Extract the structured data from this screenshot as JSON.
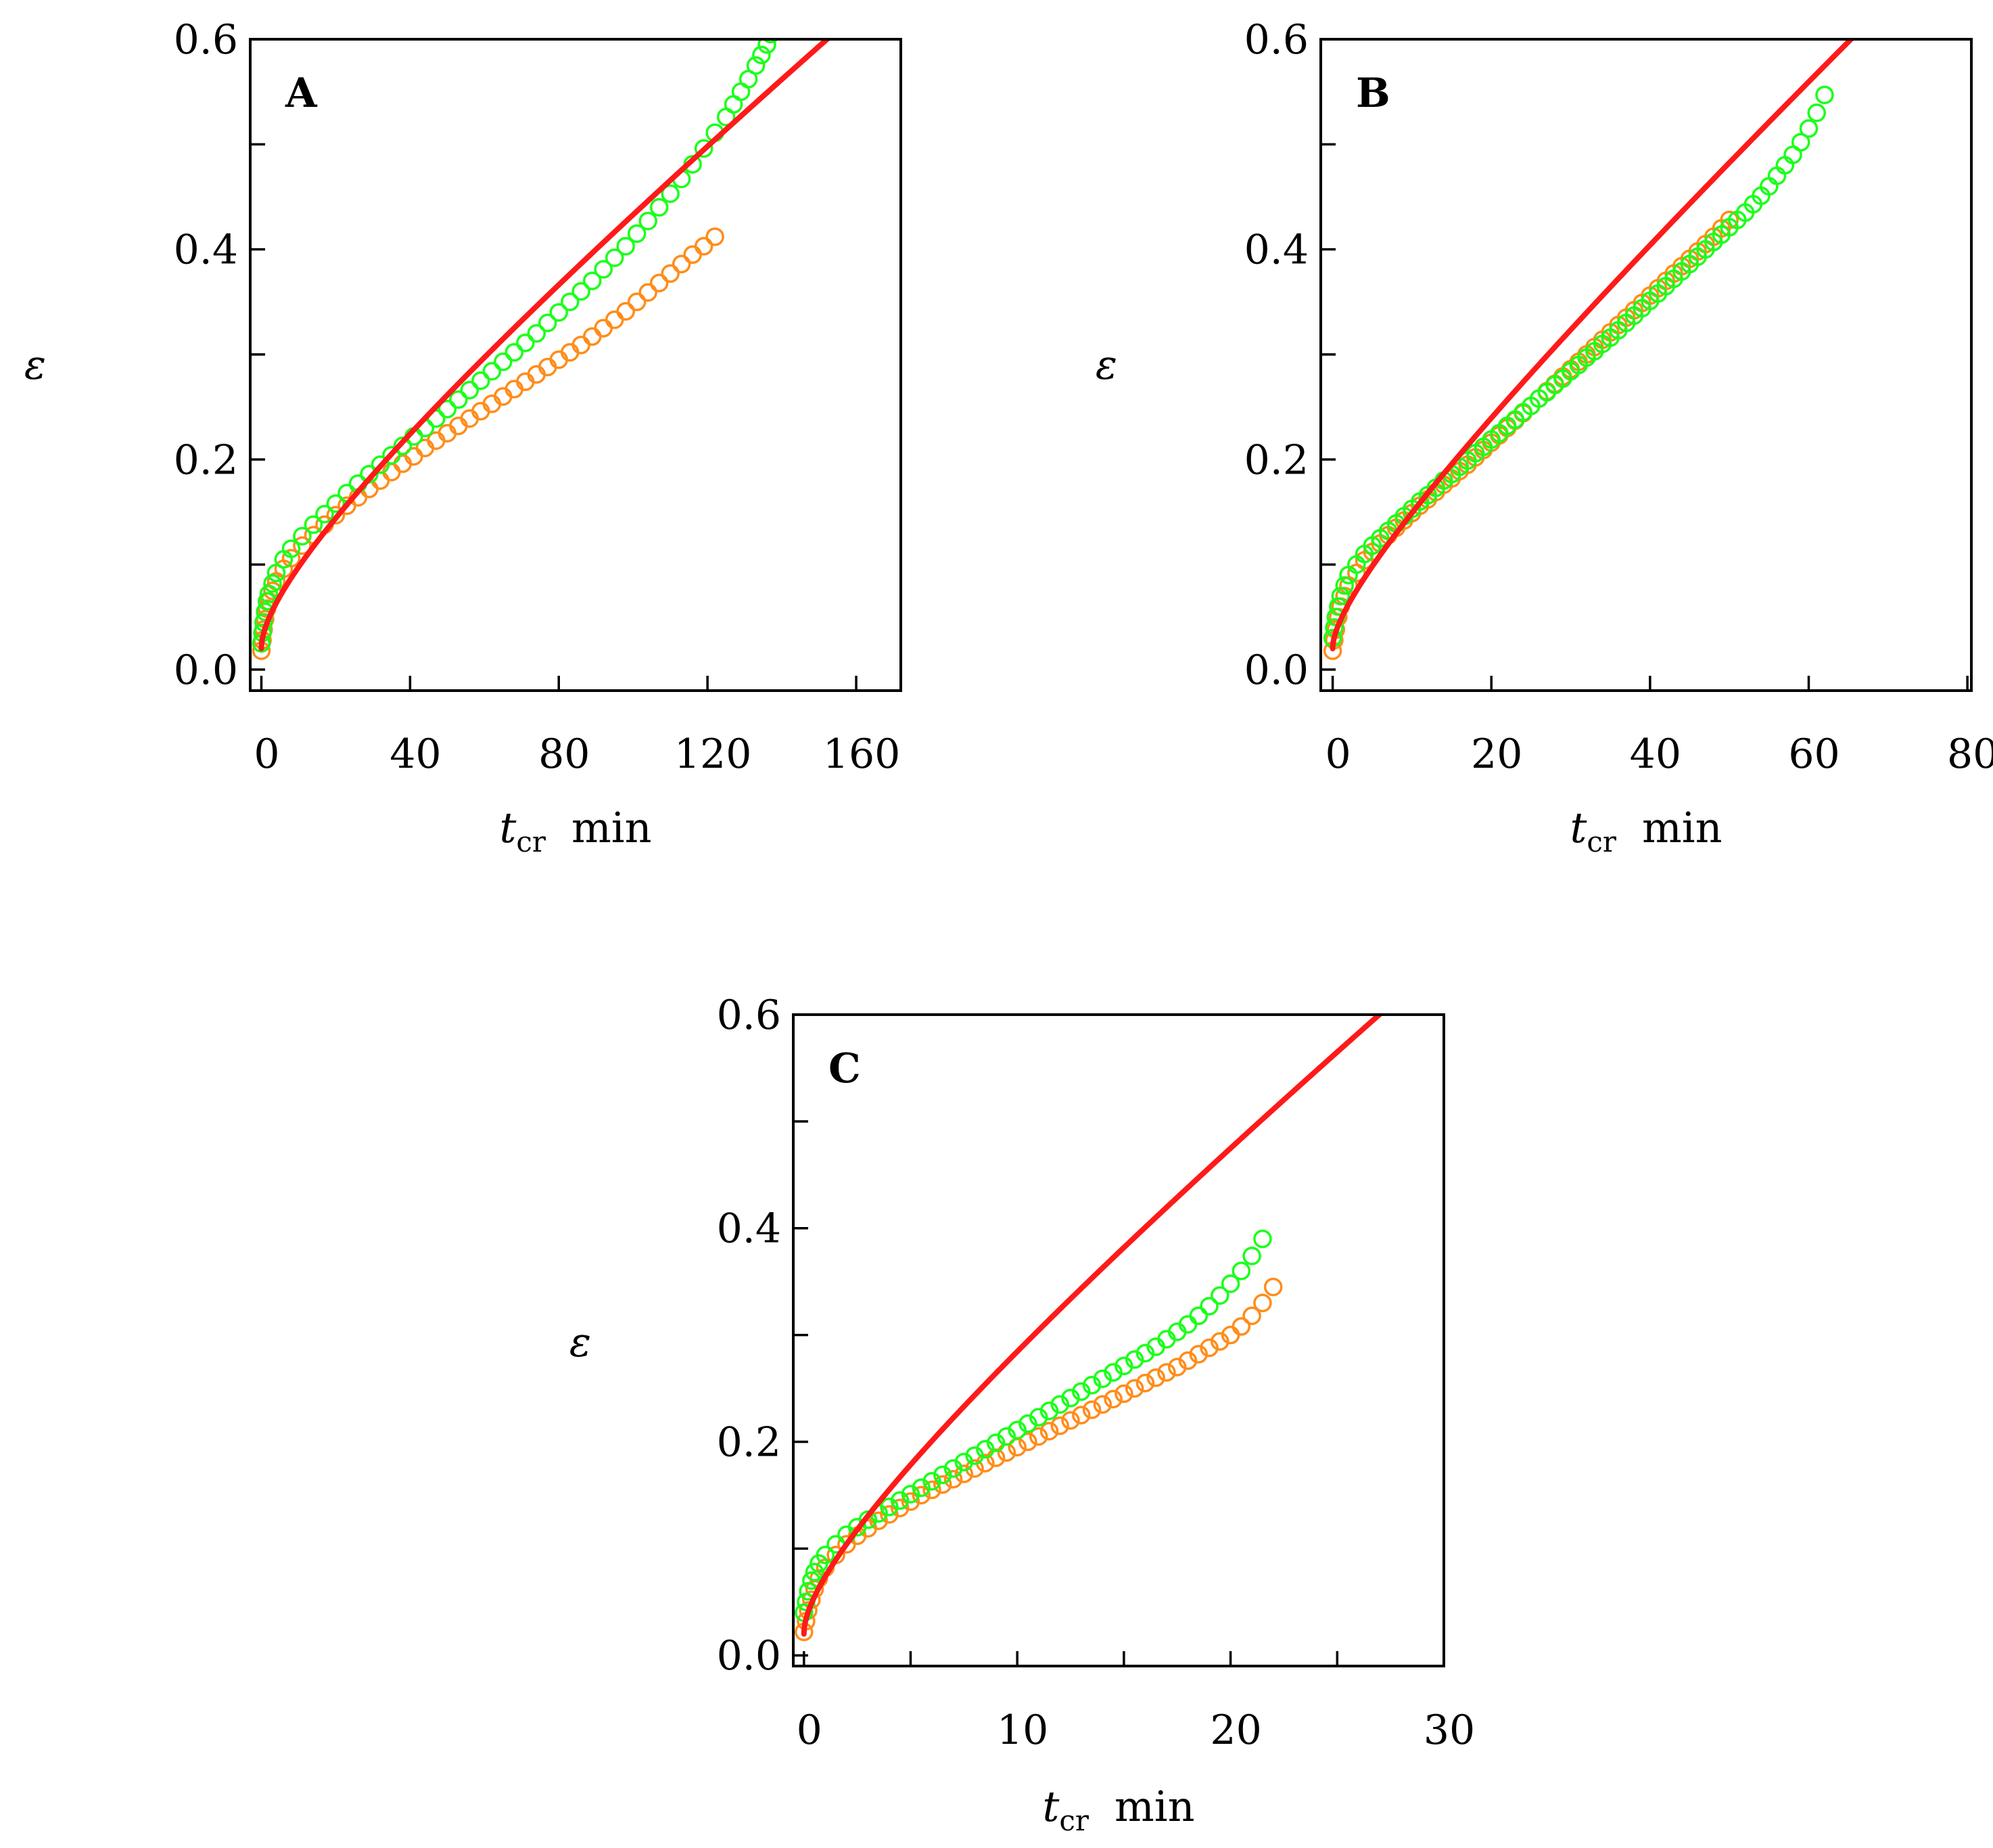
{
  "figure": {
    "colors": {
      "fit": "#ff1a1a",
      "green": "#1aff1a",
      "orange": "#ff8c1a",
      "axis": "#000000"
    }
  },
  "chart_data": [
    {
      "type": "scatter",
      "panel": "A",
      "xlabel": {
        "var": "t",
        "sub": "cr",
        "unit": "min"
      },
      "ylabel": "ε",
      "xlim": [
        -3,
        172
      ],
      "ylim": [
        -0.02,
        0.6
      ],
      "xticks": [
        0,
        40,
        80,
        120,
        160
      ],
      "xtick_labels": [
        "0",
        "40",
        "80",
        "120",
        "160"
      ],
      "yticks": [
        0.0,
        0.2,
        0.4,
        0.6
      ],
      "ytick_labels": [
        "0.0",
        "0.2",
        "0.4",
        "0.6"
      ],
      "yticks_minor": [
        0.1,
        0.3,
        0.5
      ],
      "grid": false,
      "series": [
        {
          "color": "#1aff1a",
          "marker": "circle-open",
          "x": [
            0,
            0.3,
            0.6,
            1,
            1.5,
            2,
            3,
            4,
            6,
            8,
            11,
            14,
            17,
            20,
            23,
            26,
            29,
            32,
            35,
            38,
            41,
            44,
            47,
            50,
            53,
            56,
            59,
            62,
            65,
            68,
            71,
            74,
            77,
            80,
            83,
            86,
            89,
            92,
            95,
            98,
            101,
            104,
            107,
            110,
            113,
            116,
            119,
            122,
            125,
            127,
            129,
            131,
            133,
            134.5,
            136,
            137,
            138,
            139,
            140
          ],
          "y": [
            0.025,
            0.035,
            0.045,
            0.055,
            0.065,
            0.072,
            0.082,
            0.092,
            0.105,
            0.115,
            0.127,
            0.138,
            0.148,
            0.158,
            0.168,
            0.177,
            0.186,
            0.195,
            0.204,
            0.213,
            0.222,
            0.23,
            0.239,
            0.248,
            0.257,
            0.266,
            0.275,
            0.284,
            0.293,
            0.302,
            0.311,
            0.32,
            0.33,
            0.34,
            0.35,
            0.36,
            0.37,
            0.381,
            0.392,
            0.403,
            0.415,
            0.427,
            0.44,
            0.453,
            0.467,
            0.481,
            0.496,
            0.511,
            0.526,
            0.538,
            0.55,
            0.562,
            0.575,
            0.585,
            0.595,
            0.605,
            0.615,
            0.628,
            0.64
          ]
        },
        {
          "color": "#ff8c1a",
          "marker": "circle-open",
          "x": [
            0,
            0.3,
            0.6,
            1,
            1.5,
            2,
            3,
            4,
            6,
            8,
            11,
            14,
            17,
            20,
            23,
            26,
            29,
            32,
            35,
            38,
            41,
            44,
            47,
            50,
            53,
            56,
            59,
            62,
            65,
            68,
            71,
            74,
            77,
            80,
            83,
            86,
            89,
            92,
            95,
            98,
            101,
            104,
            107,
            110,
            113,
            116,
            119,
            122
          ],
          "y": [
            0.018,
            0.028,
            0.038,
            0.048,
            0.058,
            0.065,
            0.075,
            0.084,
            0.096,
            0.106,
            0.118,
            0.128,
            0.138,
            0.147,
            0.156,
            0.164,
            0.172,
            0.18,
            0.188,
            0.196,
            0.203,
            0.211,
            0.218,
            0.225,
            0.232,
            0.239,
            0.246,
            0.253,
            0.26,
            0.267,
            0.274,
            0.281,
            0.288,
            0.295,
            0.302,
            0.309,
            0.317,
            0.325,
            0.333,
            0.341,
            0.35,
            0.359,
            0.368,
            0.377,
            0.386,
            0.395,
            0.403,
            0.412
          ]
        }
      ],
      "fit": {
        "color": "#ff1a1a",
        "x0": 0,
        "x1": 172,
        "a": 0.02,
        "b": 0.0168,
        "p": 0.5,
        "c": 0.00245
      }
    },
    {
      "type": "scatter",
      "panel": "B",
      "xlabel": {
        "var": "t",
        "sub": "cr",
        "unit": "min"
      },
      "ylabel": "ε",
      "xlim": [
        -1.5,
        80.5
      ],
      "ylim": [
        -0.02,
        0.6
      ],
      "xticks": [
        0,
        20,
        40,
        60,
        80
      ],
      "xtick_labels": [
        "0",
        "20",
        "40",
        "60",
        "80"
      ],
      "yticks": [
        0.0,
        0.2,
        0.4,
        0.6
      ],
      "ytick_labels": [
        "0.0",
        "0.2",
        "0.4",
        "0.6"
      ],
      "yticks_minor": [
        0.1,
        0.3,
        0.5
      ],
      "grid": false,
      "series": [
        {
          "color": "#1aff1a",
          "marker": "circle-open",
          "x": [
            0,
            0.2,
            0.4,
            0.7,
            1,
            1.5,
            2,
            3,
            4,
            5,
            6,
            7,
            8,
            9,
            10,
            11,
            12,
            13,
            14,
            15,
            16,
            17,
            18,
            19,
            20,
            21,
            22,
            23,
            24,
            25,
            26,
            27,
            28,
            29,
            30,
            31,
            32,
            33,
            34,
            35,
            36,
            37,
            38,
            39,
            40,
            41,
            42,
            43,
            44,
            45,
            46,
            47,
            48,
            49,
            50,
            51,
            52,
            53,
            54,
            55,
            56,
            57,
            58,
            59,
            60,
            61,
            62
          ],
          "y": [
            0.03,
            0.04,
            0.05,
            0.06,
            0.07,
            0.08,
            0.09,
            0.1,
            0.11,
            0.118,
            0.125,
            0.132,
            0.139,
            0.146,
            0.153,
            0.16,
            0.166,
            0.173,
            0.18,
            0.186,
            0.193,
            0.199,
            0.206,
            0.212,
            0.219,
            0.225,
            0.232,
            0.238,
            0.245,
            0.251,
            0.258,
            0.264,
            0.271,
            0.277,
            0.284,
            0.29,
            0.297,
            0.303,
            0.31,
            0.316,
            0.323,
            0.33,
            0.337,
            0.344,
            0.351,
            0.358,
            0.365,
            0.372,
            0.379,
            0.386,
            0.393,
            0.4,
            0.407,
            0.414,
            0.421,
            0.428,
            0.435,
            0.443,
            0.451,
            0.46,
            0.47,
            0.48,
            0.49,
            0.502,
            0.515,
            0.53,
            0.547
          ]
        },
        {
          "color": "#ff8c1a",
          "marker": "circle-open",
          "x": [
            0,
            0.2,
            0.4,
            0.7,
            1,
            1.5,
            2,
            3,
            4,
            5,
            6,
            7,
            8,
            9,
            10,
            11,
            12,
            13,
            14,
            15,
            16,
            17,
            18,
            19,
            20,
            21,
            22,
            23,
            24,
            25,
            26,
            27,
            28,
            29,
            30,
            31,
            32,
            33,
            34,
            35,
            36,
            37,
            38,
            39,
            40,
            41,
            42,
            43,
            44,
            45,
            46,
            47,
            48,
            49,
            50
          ],
          "y": [
            0.018,
            0.028,
            0.038,
            0.05,
            0.06,
            0.07,
            0.08,
            0.092,
            0.104,
            0.112,
            0.12,
            0.128,
            0.135,
            0.142,
            0.149,
            0.156,
            0.162,
            0.169,
            0.176,
            0.182,
            0.189,
            0.195,
            0.202,
            0.209,
            0.216,
            0.223,
            0.23,
            0.237,
            0.244,
            0.251,
            0.258,
            0.265,
            0.272,
            0.279,
            0.286,
            0.293,
            0.3,
            0.307,
            0.314,
            0.321,
            0.328,
            0.335,
            0.342,
            0.349,
            0.356,
            0.363,
            0.37,
            0.377,
            0.384,
            0.391,
            0.398,
            0.405,
            0.412,
            0.42,
            0.428
          ]
        }
      ],
      "fit": {
        "color": "#ff1a1a",
        "x0": 0,
        "x1": 80.5,
        "a": 0.02,
        "b": 0.021,
        "p": 0.5,
        "c": 0.00628
      }
    },
    {
      "type": "scatter",
      "panel": "C",
      "xlabel": {
        "var": "t",
        "sub": "cr",
        "unit": "min"
      },
      "ylabel": "ε",
      "xlim": [
        -0.5,
        30
      ],
      "ylim": [
        -0.01,
        0.6
      ],
      "xticks": [
        0,
        10,
        20,
        30
      ],
      "xtick_labels": [
        "0",
        "10",
        "20",
        "30"
      ],
      "xticks_minor": [
        5,
        15,
        25
      ],
      "yticks": [
        0.0,
        0.2,
        0.4,
        0.6
      ],
      "ytick_labels": [
        "0.0",
        "0.2",
        "0.4",
        "0.6"
      ],
      "yticks_minor": [
        0.1,
        0.3,
        0.5
      ],
      "grid": false,
      "series": [
        {
          "color": "#1aff1a",
          "marker": "circle-open",
          "x": [
            0,
            0.1,
            0.2,
            0.35,
            0.5,
            0.7,
            1,
            1.5,
            2,
            2.5,
            3,
            3.5,
            4,
            4.5,
            5,
            5.5,
            6,
            6.5,
            7,
            7.5,
            8,
            8.5,
            9,
            9.5,
            10,
            10.5,
            11,
            11.5,
            12,
            12.5,
            13,
            13.5,
            14,
            14.5,
            15,
            15.5,
            16,
            16.5,
            17,
            17.5,
            18,
            18.5,
            19,
            19.5,
            20,
            20.5,
            21,
            21.5
          ],
          "y": [
            0.04,
            0.05,
            0.06,
            0.07,
            0.078,
            0.086,
            0.094,
            0.104,
            0.113,
            0.12,
            0.127,
            0.133,
            0.139,
            0.145,
            0.151,
            0.157,
            0.163,
            0.169,
            0.175,
            0.181,
            0.187,
            0.193,
            0.199,
            0.205,
            0.211,
            0.217,
            0.223,
            0.229,
            0.235,
            0.241,
            0.247,
            0.253,
            0.259,
            0.265,
            0.271,
            0.277,
            0.283,
            0.289,
            0.296,
            0.303,
            0.31,
            0.318,
            0.327,
            0.337,
            0.348,
            0.36,
            0.374,
            0.39
          ]
        },
        {
          "color": "#ff8c1a",
          "marker": "circle-open",
          "x": [
            0,
            0.1,
            0.2,
            0.35,
            0.5,
            0.7,
            1,
            1.5,
            2,
            2.5,
            3,
            3.5,
            4,
            4.5,
            5,
            5.5,
            6,
            6.5,
            7,
            7.5,
            8,
            8.5,
            9,
            9.5,
            10,
            10.5,
            11,
            11.5,
            12,
            12.5,
            13,
            13.5,
            14,
            14.5,
            15,
            15.5,
            16,
            16.5,
            17,
            17.5,
            18,
            18.5,
            19,
            19.5,
            20,
            20.5,
            21,
            21.5,
            22
          ],
          "y": [
            0.022,
            0.032,
            0.042,
            0.052,
            0.062,
            0.072,
            0.082,
            0.094,
            0.104,
            0.112,
            0.119,
            0.126,
            0.132,
            0.138,
            0.144,
            0.15,
            0.155,
            0.16,
            0.165,
            0.17,
            0.175,
            0.18,
            0.185,
            0.19,
            0.195,
            0.2,
            0.205,
            0.21,
            0.215,
            0.22,
            0.225,
            0.23,
            0.235,
            0.24,
            0.245,
            0.25,
            0.255,
            0.26,
            0.265,
            0.27,
            0.276,
            0.282,
            0.288,
            0.294,
            0.3,
            0.308,
            0.318,
            0.33,
            0.345
          ]
        }
      ],
      "fit": {
        "color": "#ff1a1a",
        "x0": 0,
        "x1": 30,
        "a": 0.02,
        "b": 0.04,
        "p": 0.5,
        "c": 0.0138
      }
    }
  ]
}
